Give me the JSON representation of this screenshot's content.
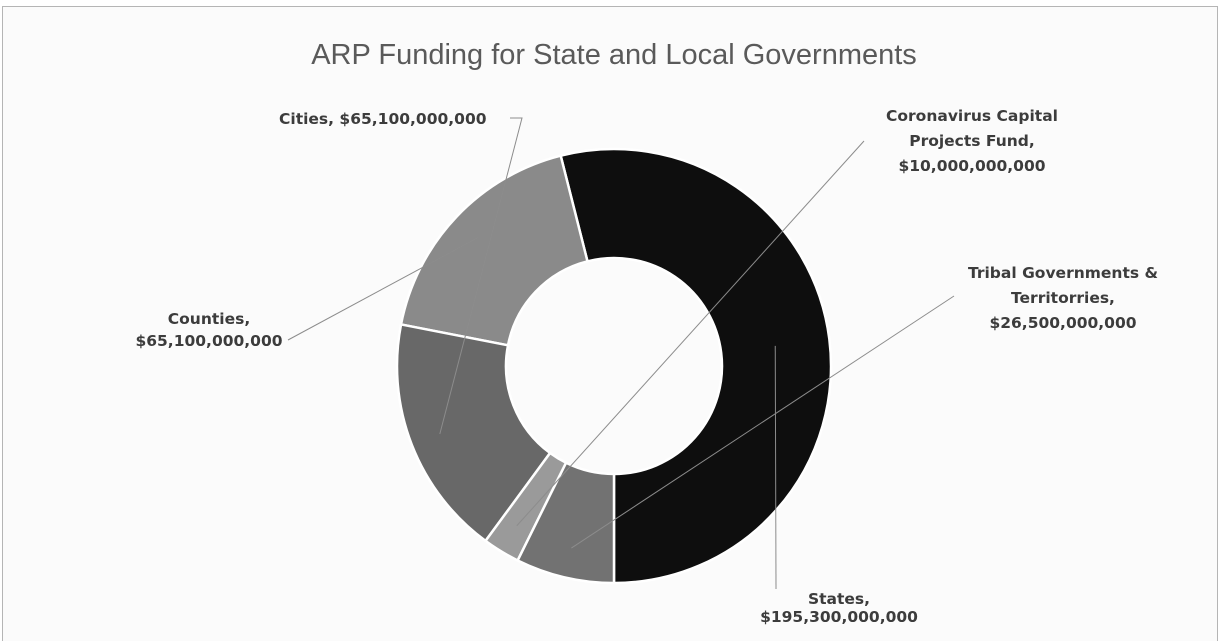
{
  "chart_data": {
    "type": "pie",
    "title": "ARP Funding for State and Local Governments",
    "hole": "donut",
    "legend": "none",
    "slices": [
      {
        "name": "States",
        "value": 195300000000,
        "color": "#0e0e0e",
        "label_lines": [
          "States,",
          "$195,300,000,000"
        ]
      },
      {
        "name": "Counties",
        "value": 65100000000,
        "color": "#8a8a8a",
        "label_lines": [
          "Counties,",
          "$65,100,000,000"
        ]
      },
      {
        "name": "Cities",
        "value": 65100000000,
        "color": "#686868",
        "label_lines": [
          "Cities, $65,100,000,000"
        ]
      },
      {
        "name": "Coronavirus Capital Projects Fund",
        "value": 10000000000,
        "color": "#9a9a9a",
        "label_lines": [
          "Coronavirus Capital",
          "Projects Fund,",
          "$10,000,000,000"
        ]
      },
      {
        "name": "Tribal Governments & Territorries",
        "value": 26500000000,
        "color": "#727272",
        "label_lines": [
          "Tribal Governments &",
          "Territorries,",
          "$26,500,000,000"
        ]
      }
    ]
  }
}
